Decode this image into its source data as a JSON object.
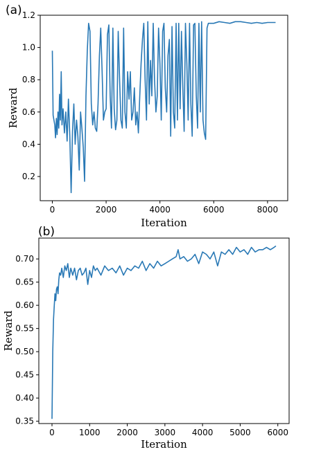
{
  "chart_data": [
    {
      "panel_label": "(a)",
      "type": "line",
      "xlabel": "Iteration",
      "ylabel": "Reward",
      "xlim": [
        -450,
        8750
      ],
      "ylim": [
        0.05,
        1.2
      ],
      "xticks": [
        0,
        2000,
        4000,
        6000,
        8000
      ],
      "yticks": [
        0.2,
        0.4,
        0.6,
        0.8,
        1.0,
        1.2
      ],
      "ytick_labels": [
        "0.2",
        "0.4",
        "0.6",
        "0.8",
        "1.0",
        "1.2"
      ],
      "grid": false,
      "color": "#2878b5",
      "series": [
        {
          "x": [
            0,
            30,
            60,
            90,
            120,
            150,
            180,
            210,
            240,
            270,
            300,
            330,
            360,
            400,
            450,
            500,
            550,
            600,
            650,
            700,
            750,
            800,
            850,
            900,
            950,
            1000,
            1050,
            1100,
            1150,
            1200,
            1250,
            1300,
            1350,
            1400,
            1450,
            1500,
            1550,
            1600,
            1650,
            1700,
            1750,
            1800,
            1850,
            1900,
            1950,
            2000,
            2050,
            2100,
            2150,
            2200,
            2250,
            2300,
            2350,
            2400,
            2450,
            2500,
            2550,
            2600,
            2650,
            2700,
            2750,
            2800,
            2850,
            2900,
            2950,
            3000,
            3050,
            3100,
            3150,
            3200,
            3250,
            3300,
            3350,
            3400,
            3450,
            3500,
            3550,
            3600,
            3650,
            3700,
            3750,
            3800,
            3850,
            3900,
            3950,
            4000,
            4050,
            4100,
            4150,
            4200,
            4250,
            4300,
            4350,
            4400,
            4450,
            4500,
            4550,
            4600,
            4650,
            4700,
            4750,
            4800,
            4850,
            4900,
            4950,
            5000,
            5050,
            5100,
            5150,
            5200,
            5250,
            5300,
            5350,
            5400,
            5450,
            5500,
            5550,
            5600,
            5650,
            5700,
            5750,
            5800,
            5850,
            5900,
            5950,
            6000,
            6200,
            6400,
            6600,
            6800,
            7000,
            7200,
            7400,
            7600,
            7800,
            8000,
            8200,
            8300
          ],
          "y": [
            0.98,
            0.58,
            0.55,
            0.52,
            0.44,
            0.56,
            0.46,
            0.6,
            0.5,
            0.71,
            0.55,
            0.85,
            0.52,
            0.62,
            0.47,
            0.6,
            0.42,
            0.68,
            0.45,
            0.1,
            0.48,
            0.65,
            0.4,
            0.55,
            0.45,
            0.24,
            0.6,
            0.5,
            0.38,
            0.17,
            0.7,
            0.98,
            1.15,
            1.1,
            0.65,
            0.52,
            0.6,
            0.5,
            0.48,
            0.65,
            0.95,
            1.12,
            0.85,
            0.55,
            0.6,
            0.62,
            1.08,
            1.14,
            0.7,
            0.5,
            1.12,
            0.62,
            0.49,
            0.55,
            1.1,
            0.8,
            0.55,
            0.5,
            1.12,
            0.6,
            0.5,
            0.85,
            0.68,
            0.85,
            0.55,
            0.6,
            0.75,
            0.52,
            0.6,
            0.47,
            0.7,
            0.9,
            1.05,
            1.15,
            0.8,
            0.55,
            1.16,
            0.65,
            0.92,
            0.7,
            1.15,
            0.8,
            0.6,
            0.7,
            1.12,
            0.9,
            0.55,
            1.1,
            1.15,
            0.75,
            0.6,
            0.95,
            1.05,
            0.45,
            1.13,
            0.6,
            0.5,
            1.15,
            0.55,
            1.15,
            0.62,
            1.1,
            0.75,
            0.48,
            1.15,
            0.9,
            0.55,
            1.15,
            0.65,
            0.45,
            1.14,
            1.15,
            0.7,
            0.5,
            1.15,
            0.6,
            1.16,
            0.55,
            0.47,
            0.43,
            1.12,
            1.15,
            1.15,
            1.15,
            1.15,
            1.15,
            1.16,
            1.155,
            1.15,
            1.16,
            1.16,
            1.155,
            1.15,
            1.155,
            1.15,
            1.155,
            1.155,
            1.155
          ]
        }
      ]
    },
    {
      "panel_label": "(b)",
      "type": "line",
      "xlabel": "Iteration",
      "ylabel": "Reward",
      "xlim": [
        -350,
        6300
      ],
      "ylim": [
        0.345,
        0.745
      ],
      "xticks": [
        0,
        1000,
        2000,
        3000,
        4000,
        5000,
        6000
      ],
      "yticks": [
        0.35,
        0.4,
        0.45,
        0.5,
        0.55,
        0.6,
        0.65,
        0.7
      ],
      "ytick_labels": [
        "0.35",
        "0.40",
        "0.45",
        "0.50",
        "0.55",
        "0.60",
        "0.65",
        "0.70"
      ],
      "grid": false,
      "color": "#2878b5",
      "series": [
        {
          "x": [
            0,
            10,
            20,
            40,
            60,
            80,
            100,
            120,
            140,
            160,
            180,
            200,
            230,
            260,
            300,
            340,
            380,
            420,
            460,
            500,
            550,
            600,
            650,
            700,
            750,
            800,
            850,
            900,
            950,
            1000,
            1050,
            1100,
            1150,
            1200,
            1300,
            1400,
            1500,
            1600,
            1700,
            1800,
            1900,
            2000,
            2100,
            2200,
            2300,
            2400,
            2500,
            2600,
            2700,
            2800,
            2900,
            3000,
            3100,
            3200,
            3300,
            3350,
            3400,
            3500,
            3600,
            3700,
            3800,
            3900,
            4000,
            4100,
            4200,
            4300,
            4400,
            4500,
            4600,
            4700,
            4800,
            4900,
            5000,
            5100,
            5200,
            5300,
            5400,
            5500,
            5600,
            5700,
            5800,
            5900,
            5950
          ],
          "y": [
            0.355,
            0.42,
            0.5,
            0.57,
            0.6,
            0.625,
            0.61,
            0.635,
            0.64,
            0.625,
            0.655,
            0.67,
            0.665,
            0.68,
            0.66,
            0.685,
            0.675,
            0.69,
            0.66,
            0.68,
            0.665,
            0.68,
            0.655,
            0.675,
            0.68,
            0.665,
            0.67,
            0.68,
            0.645,
            0.675,
            0.66,
            0.685,
            0.675,
            0.68,
            0.665,
            0.685,
            0.675,
            0.68,
            0.67,
            0.685,
            0.665,
            0.68,
            0.675,
            0.685,
            0.68,
            0.695,
            0.675,
            0.69,
            0.68,
            0.695,
            0.685,
            0.69,
            0.695,
            0.7,
            0.705,
            0.72,
            0.7,
            0.705,
            0.695,
            0.7,
            0.71,
            0.69,
            0.715,
            0.71,
            0.7,
            0.715,
            0.685,
            0.715,
            0.71,
            0.72,
            0.71,
            0.725,
            0.715,
            0.72,
            0.71,
            0.725,
            0.715,
            0.72,
            0.72,
            0.725,
            0.72,
            0.725,
            0.728
          ]
        }
      ]
    }
  ]
}
